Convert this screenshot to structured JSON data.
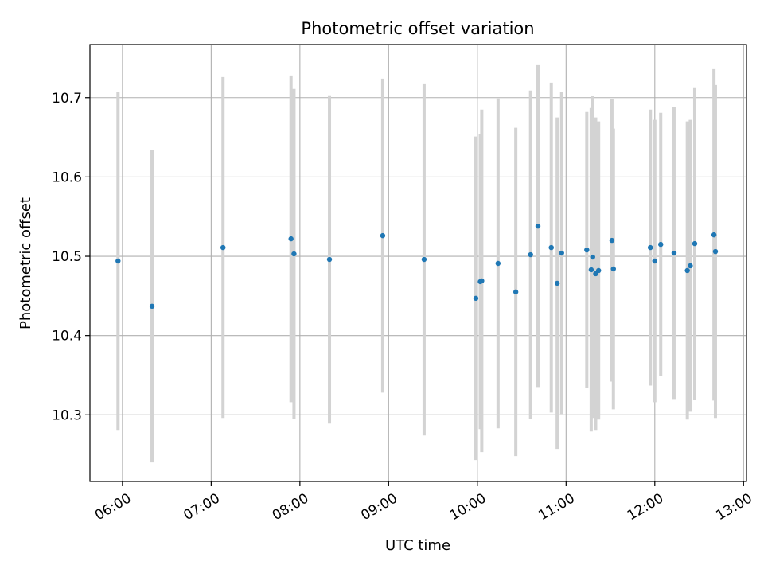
{
  "chart_data": {
    "type": "scatter",
    "title": "Photometric offset variation",
    "xlabel": "UTC time",
    "ylabel": "Photometric offset",
    "x_ticks": [
      "06:00",
      "07:00",
      "08:00",
      "09:00",
      "10:00",
      "11:00",
      "12:00",
      "13:00"
    ],
    "y_ticks": [
      "10.3",
      "10.4",
      "10.5",
      "10.6",
      "10.7"
    ],
    "xlim": [
      "05:38",
      "13:02"
    ],
    "ylim": [
      10.216,
      10.767
    ],
    "grid": true,
    "colors": {
      "point": "#1f77b4",
      "errorbar": "#d3d3d3",
      "grid": "#b0b0b0"
    },
    "points": [
      {
        "time": "05:57",
        "y": 10.494,
        "err": 0.213
      },
      {
        "time": "06:20",
        "y": 10.437,
        "err": 0.197
      },
      {
        "time": "07:08",
        "y": 10.511,
        "err": 0.215
      },
      {
        "time": "07:54",
        "y": 10.522,
        "err": 0.206
      },
      {
        "time": "07:56",
        "y": 10.503,
        "err": 0.208
      },
      {
        "time": "08:20",
        "y": 10.496,
        "err": 0.207
      },
      {
        "time": "08:56",
        "y": 10.526,
        "err": 0.198
      },
      {
        "time": "09:24",
        "y": 10.496,
        "err": 0.222
      },
      {
        "time": "09:59",
        "y": 10.447,
        "err": 0.204
      },
      {
        "time": "10:02",
        "y": 10.468,
        "err": 0.186
      },
      {
        "time": "10:03",
        "y": 10.469,
        "err": 0.216
      },
      {
        "time": "10:14",
        "y": 10.491,
        "err": 0.208
      },
      {
        "time": "10:26",
        "y": 10.455,
        "err": 0.207
      },
      {
        "time": "10:36",
        "y": 10.502,
        "err": 0.207
      },
      {
        "time": "10:41",
        "y": 10.538,
        "err": 0.203
      },
      {
        "time": "10:50",
        "y": 10.511,
        "err": 0.208
      },
      {
        "time": "10:54",
        "y": 10.466,
        "err": 0.209
      },
      {
        "time": "10:57",
        "y": 10.504,
        "err": 0.203
      },
      {
        "time": "11:14",
        "y": 10.508,
        "err": 0.174
      },
      {
        "time": "11:17",
        "y": 10.483,
        "err": 0.204
      },
      {
        "time": "11:18",
        "y": 10.499,
        "err": 0.203
      },
      {
        "time": "11:20",
        "y": 10.478,
        "err": 0.197
      },
      {
        "time": "11:22",
        "y": 10.482,
        "err": 0.188
      },
      {
        "time": "11:31",
        "y": 10.52,
        "err": 0.178
      },
      {
        "time": "11:32",
        "y": 10.484,
        "err": 0.177
      },
      {
        "time": "11:57",
        "y": 10.511,
        "err": 0.174
      },
      {
        "time": "12:00",
        "y": 10.494,
        "err": 0.178
      },
      {
        "time": "12:04",
        "y": 10.515,
        "err": 0.166
      },
      {
        "time": "12:13",
        "y": 10.504,
        "err": 0.184
      },
      {
        "time": "12:22",
        "y": 10.482,
        "err": 0.188
      },
      {
        "time": "12:24",
        "y": 10.488,
        "err": 0.184
      },
      {
        "time": "12:27",
        "y": 10.516,
        "err": 0.197
      },
      {
        "time": "12:40",
        "y": 10.527,
        "err": 0.209
      },
      {
        "time": "12:41",
        "y": 10.506,
        "err": 0.21
      }
    ]
  }
}
